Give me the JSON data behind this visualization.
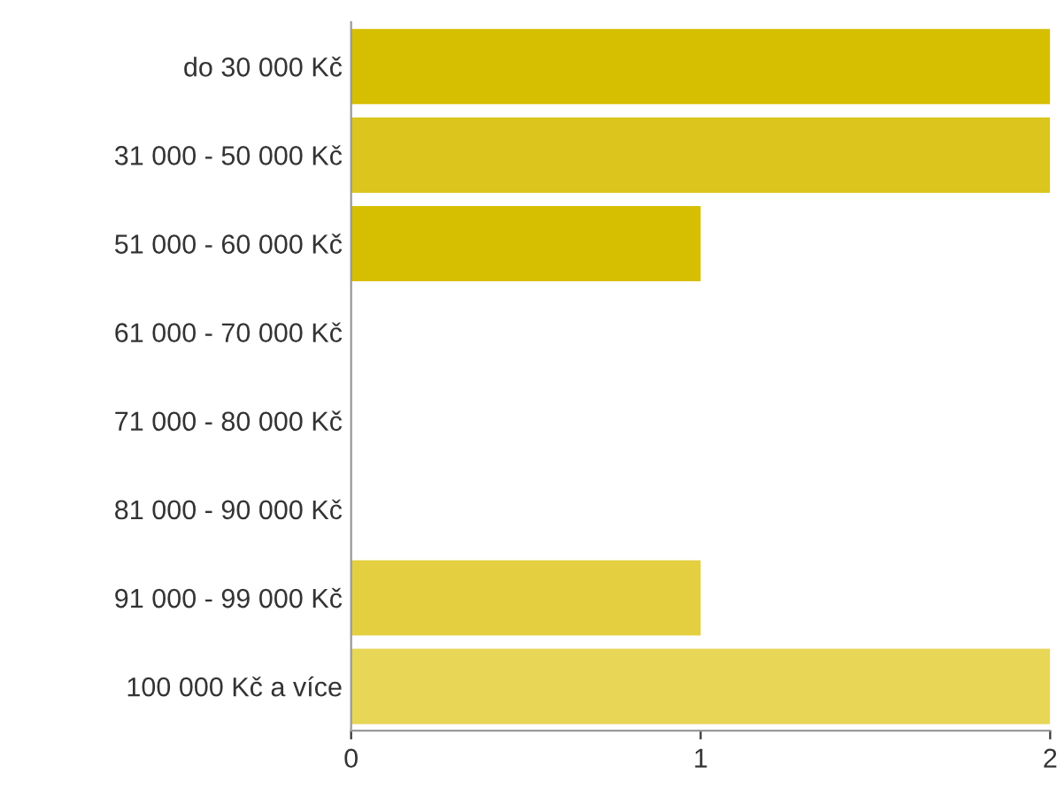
{
  "chart_data": {
    "type": "bar",
    "orientation": "horizontal",
    "categories": [
      "do 30 000 Kč",
      "31 000 - 50 000 Kč",
      "51 000 - 60 000 Kč",
      "61 000 - 70 000 Kč",
      "71 000 - 80 000 Kč",
      "81 000 - 90 000 Kč",
      "91 000 - 99 000 Kč",
      "100 000 Kč a více"
    ],
    "values": [
      2,
      2,
      1,
      0,
      0,
      0,
      1,
      2
    ],
    "colors": [
      "#d6be00",
      "#dcc51c",
      "#d6be00",
      "#dcc51c",
      "#e0c92c",
      "#e3cd36",
      "#e3cf40",
      "#e8d656"
    ],
    "xlim": [
      0,
      2
    ],
    "xticks": [
      0,
      1,
      2
    ],
    "grid": false,
    "legend": false
  }
}
